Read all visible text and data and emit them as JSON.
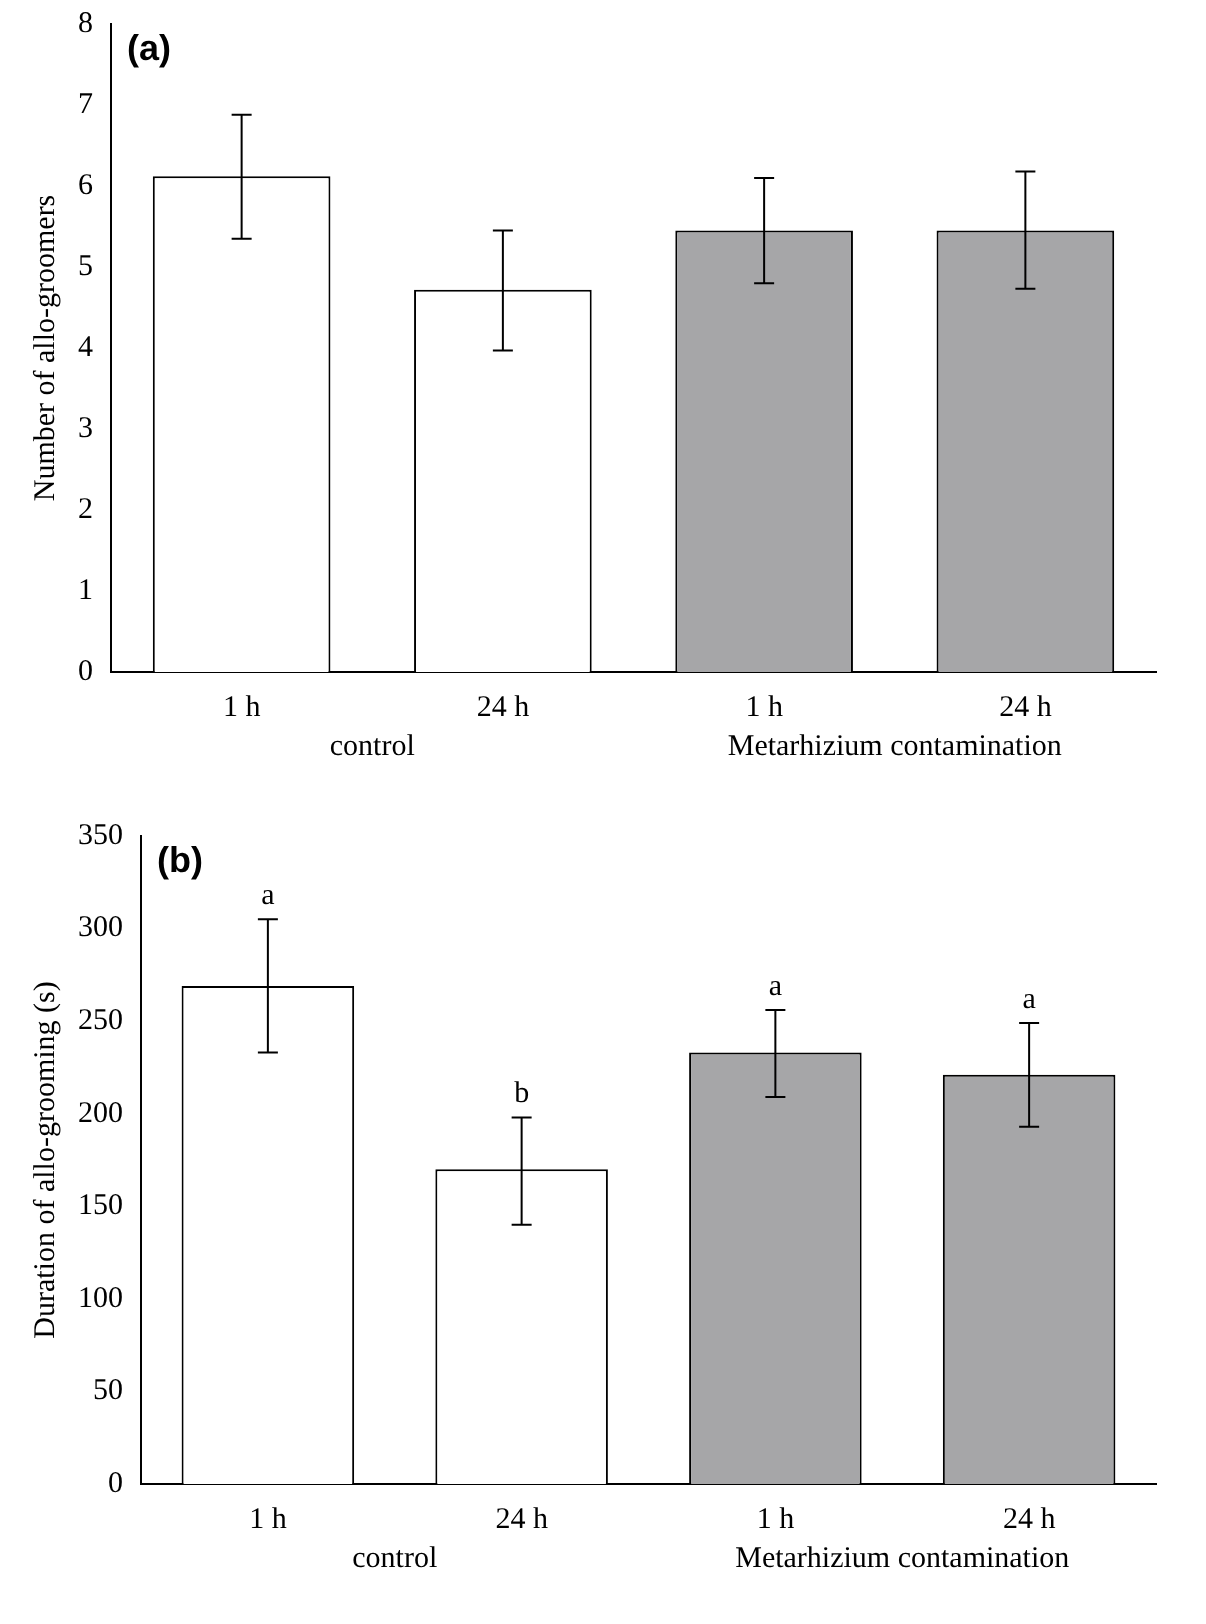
{
  "chart_data": [
    {
      "type": "bar",
      "title": "(a)",
      "ylabel": "Number of allo-groomers",
      "categories": [
        "1 h",
        "24 h",
        "1 h",
        "24 h"
      ],
      "values": [
        6.12,
        4.72,
        5.45,
        5.45
      ],
      "errors": [
        [
          5.35,
          6.88
        ],
        [
          3.97,
          5.45
        ],
        [
          4.8,
          6.1
        ],
        [
          4.73,
          6.18
        ]
      ],
      "colors": [
        "#ffffff",
        "#ffffff",
        "#a6a6a8",
        "#a6a6a8"
      ],
      "ylim": [
        0,
        8
      ],
      "yticks": [
        0,
        1,
        2,
        3,
        4,
        5,
        6,
        7,
        8
      ],
      "grid": false,
      "annotations": [
        "control",
        "Metarhizium contamination"
      ]
    },
    {
      "type": "bar",
      "title": "(b)",
      "ylabel": "Duration of allo-grooming (s)",
      "categories": [
        "1 h",
        "24 h",
        "1 h",
        "24 h"
      ],
      "values": [
        269,
        170,
        233,
        221
      ],
      "errors": [
        [
          233,
          305
        ],
        [
          140,
          198
        ],
        [
          209,
          256
        ],
        [
          193,
          249
        ]
      ],
      "value_labels": [
        "a",
        "b",
        "a",
        "a"
      ],
      "colors": [
        "#ffffff",
        "#ffffff",
        "#a6a6a8",
        "#a6a6a8"
      ],
      "ylim": [
        0,
        350
      ],
      "yticks": [
        0,
        50,
        100,
        150,
        200,
        250,
        300,
        350
      ],
      "grid": false,
      "annotations": [
        "control",
        "Metarhizium contamination"
      ]
    }
  ]
}
